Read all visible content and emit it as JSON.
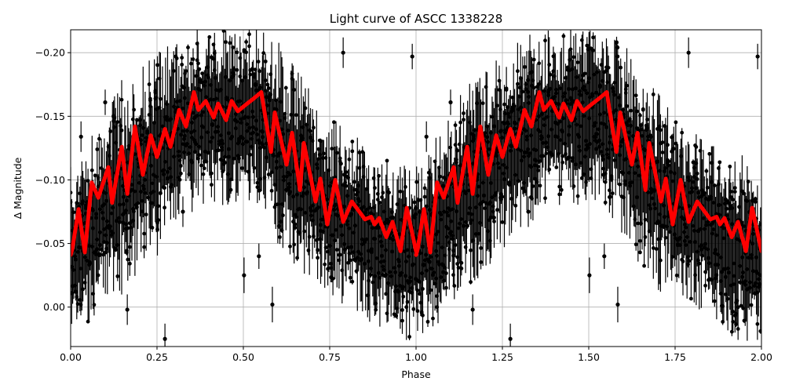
{
  "chart_data": {
    "type": "scatter",
    "title": "Light curve of ASCC 1338228",
    "xlabel": "Phase",
    "ylabel": "Δ Magnitude",
    "xlim": [
      0.0,
      2.0
    ],
    "ylim": [
      0.031,
      -0.218
    ],
    "y_inverted": true,
    "grid": true,
    "x_ticks": [
      "0.00",
      "0.25",
      "0.50",
      "0.75",
      "1.00",
      "1.25",
      "1.50",
      "1.75",
      "2.00"
    ],
    "x_tick_values": [
      0,
      0.25,
      0.5,
      0.75,
      1.0,
      1.25,
      1.5,
      1.75,
      2.0
    ],
    "y_ticks": [
      "−0.20",
      "−0.15",
      "−0.10",
      "−0.05",
      "0.00"
    ],
    "y_tick_values": [
      -0.2,
      -0.15,
      -0.1,
      -0.05,
      0.0
    ],
    "colors": {
      "points": "#000000",
      "model": "#ff0000",
      "grid": "#b0b0b0"
    },
    "observations_envelope": [
      [
        0.0,
        -0.11,
        0.03
      ],
      [
        0.05,
        -0.13,
        0.02
      ],
      [
        0.1,
        -0.15,
        0.0
      ],
      [
        0.15,
        -0.18,
        -0.01
      ],
      [
        0.2,
        -0.19,
        -0.03
      ],
      [
        0.25,
        -0.2,
        -0.04
      ],
      [
        0.3,
        -0.21,
        -0.06
      ],
      [
        0.35,
        -0.22,
        -0.07
      ],
      [
        0.4,
        -0.22,
        -0.08
      ],
      [
        0.45,
        -0.22,
        -0.08
      ],
      [
        0.5,
        -0.22,
        -0.08
      ],
      [
        0.55,
        -0.22,
        -0.08
      ],
      [
        0.6,
        -0.21,
        -0.05
      ],
      [
        0.65,
        -0.19,
        -0.03
      ],
      [
        0.7,
        -0.17,
        -0.01
      ],
      [
        0.75,
        -0.15,
        -0.01
      ],
      [
        0.8,
        -0.14,
        0.0
      ],
      [
        0.85,
        -0.13,
        0.01
      ],
      [
        0.9,
        -0.12,
        0.02
      ],
      [
        0.95,
        -0.12,
        0.03
      ],
      [
        1.0,
        -0.11,
        0.03
      ]
    ],
    "observations_sample": [
      {
        "phase": 0.03,
        "mag": -0.134,
        "err": 0.012
      },
      {
        "phase": 0.1,
        "mag": -0.161,
        "err": 0.01
      },
      {
        "phase": 0.164,
        "mag": 0.002,
        "err": 0.012
      },
      {
        "phase": 0.273,
        "mag": 0.025,
        "err": 0.012
      },
      {
        "phase": 0.325,
        "mag": -0.075,
        "err": 0.012
      },
      {
        "phase": 0.502,
        "mag": -0.025,
        "err": 0.014
      },
      {
        "phase": 0.545,
        "mag": -0.04,
        "err": 0.01
      },
      {
        "phase": 0.584,
        "mag": -0.002,
        "err": 0.014
      },
      {
        "phase": 0.789,
        "mag": -0.2,
        "err": 0.012
      },
      {
        "phase": 0.989,
        "mag": -0.197,
        "err": 0.01
      }
    ],
    "model": {
      "phase": [
        0.0,
        0.005,
        0.023,
        0.041,
        0.061,
        0.08,
        0.109,
        0.12,
        0.148,
        0.164,
        0.186,
        0.209,
        0.232,
        0.25,
        0.273,
        0.289,
        0.314,
        0.334,
        0.357,
        0.37,
        0.391,
        0.414,
        0.427,
        0.45,
        0.466,
        0.484,
        0.511,
        0.53,
        0.552,
        0.58,
        0.591,
        0.625,
        0.641,
        0.664,
        0.675,
        0.709,
        0.723,
        0.743,
        0.766,
        0.789,
        0.814,
        0.852,
        0.87,
        0.88,
        0.893,
        0.914,
        0.932,
        0.955,
        0.973,
        1.0
      ],
      "mag": [
        -0.041,
        -0.046,
        -0.077,
        -0.043,
        -0.098,
        -0.086,
        -0.11,
        -0.082,
        -0.126,
        -0.089,
        -0.142,
        -0.104,
        -0.135,
        -0.118,
        -0.14,
        -0.126,
        -0.155,
        -0.142,
        -0.169,
        -0.155,
        -0.162,
        -0.149,
        -0.16,
        -0.147,
        -0.162,
        -0.154,
        -0.16,
        -0.164,
        -0.169,
        -0.122,
        -0.153,
        -0.112,
        -0.137,
        -0.092,
        -0.129,
        -0.083,
        -0.101,
        -0.065,
        -0.1,
        -0.067,
        -0.083,
        -0.069,
        -0.071,
        -0.065,
        -0.07,
        -0.055,
        -0.067,
        -0.044,
        -0.078,
        -0.044
      ]
    }
  }
}
